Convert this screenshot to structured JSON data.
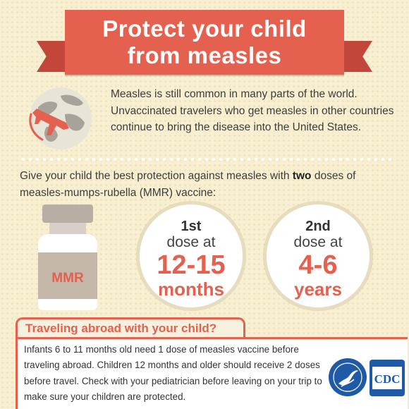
{
  "header": {
    "title_line1": "Protect your child",
    "title_line2": "from measles"
  },
  "intro": {
    "text": "Measles is still common in many parts of the world. Unvaccinated travelers who get measles in other countries continue to bring the disease into the United States.",
    "icon": "globe-airplane-icon"
  },
  "vaccine": {
    "text_before": "Give your child the best protection against measles with ",
    "text_bold": "two",
    "text_after": " doses of measles-mumps-rubella (MMR) vaccine:",
    "vial_label": "MMR"
  },
  "doses": [
    {
      "ordinal": "1st",
      "word": "dose at",
      "number": "12-15",
      "unit": "months"
    },
    {
      "ordinal": "2nd",
      "word": "dose at",
      "number": "4-6",
      "unit": "years"
    }
  ],
  "travel": {
    "title": "Traveling abroad with your child?",
    "text": "Infants 6 to 11 months old need 1 dose of measles vaccine before traveling abroad. Children 12 months and older should receive 2 doses before travel. Check with your pediatrician before leaving on your trip to make sure your children are protected."
  },
  "logos": {
    "hhs_icon": "hhs-seal-icon",
    "cdc_label": "CDC"
  },
  "colors": {
    "accent": "#e4604f",
    "background": "#f7efd0",
    "logo_blue": "#1f5aa6"
  }
}
